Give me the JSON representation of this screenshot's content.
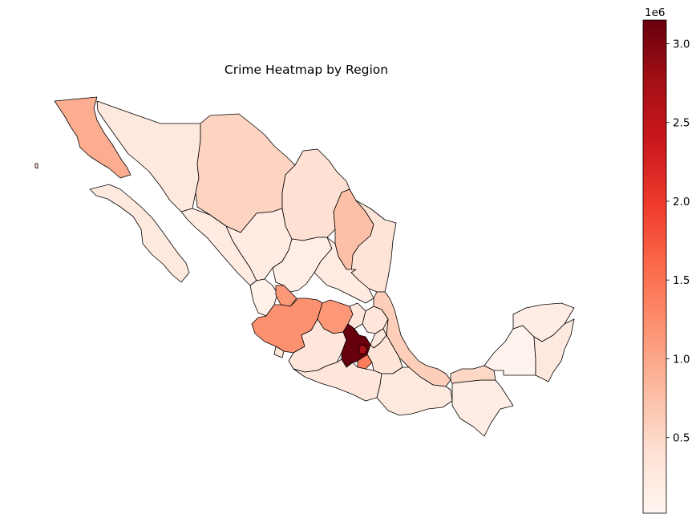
{
  "title": "Crime Heatmap by Region",
  "colorbar": {
    "multiplier_label": "1e6",
    "ticks": [
      {
        "value": 3.0,
        "label": "3.0"
      },
      {
        "value": 2.5,
        "label": "2.5"
      },
      {
        "value": 2.0,
        "label": "2.0"
      },
      {
        "value": 1.5,
        "label": "1.5"
      },
      {
        "value": 1.0,
        "label": "1.0"
      },
      {
        "value": 0.5,
        "label": "0.5"
      }
    ],
    "range": [
      0.02,
      3.15
    ],
    "colormap": [
      "#fff5f0",
      "#fee0d2",
      "#fcbba1",
      "#fc9272",
      "#fb6a4a",
      "#ef3b2c",
      "#cb181d",
      "#a50f15",
      "#67000d"
    ]
  },
  "chart_data": {
    "type": "heatmap",
    "title": "Crime Heatmap by Region",
    "unit_multiplier": "1e6",
    "value_range": [
      0.02,
      3.15
    ],
    "regions": [
      {
        "id": "baja-california",
        "value": 0.95
      },
      {
        "id": "baja-california-sur",
        "value": 0.25
      },
      {
        "id": "sonora",
        "value": 0.25
      },
      {
        "id": "chihuahua",
        "value": 0.55
      },
      {
        "id": "coahuila",
        "value": 0.4
      },
      {
        "id": "nuevo-leon",
        "value": 0.75
      },
      {
        "id": "tamaulipas",
        "value": 0.35
      },
      {
        "id": "sinaloa",
        "value": 0.2
      },
      {
        "id": "durango",
        "value": 0.2
      },
      {
        "id": "zacatecas",
        "value": 0.15
      },
      {
        "id": "san-luis-potosi",
        "value": 0.2
      },
      {
        "id": "nayarit",
        "value": 0.12
      },
      {
        "id": "aguascalientes",
        "value": 1.15
      },
      {
        "id": "jalisco",
        "value": 1.2
      },
      {
        "id": "guanajuato",
        "value": 1.15
      },
      {
        "id": "queretaro",
        "value": 0.3
      },
      {
        "id": "hidalgo",
        "value": 0.3
      },
      {
        "id": "veracruz",
        "value": 0.6
      },
      {
        "id": "colima",
        "value": 0.3
      },
      {
        "id": "michoacan",
        "value": 0.3
      },
      {
        "id": "estado-de-mexico",
        "value": 3.15
      },
      {
        "id": "ciudad-de-mexico",
        "value": 2.7
      },
      {
        "id": "morelos",
        "value": 1.4
      },
      {
        "id": "tlaxcala",
        "value": 0.3
      },
      {
        "id": "puebla",
        "value": 0.35
      },
      {
        "id": "guerrero",
        "value": 0.3
      },
      {
        "id": "oaxaca",
        "value": 0.25
      },
      {
        "id": "chiapas",
        "value": 0.18
      },
      {
        "id": "tabasco",
        "value": 0.5
      },
      {
        "id": "campeche",
        "value": 0.05
      },
      {
        "id": "yucatan",
        "value": 0.18
      },
      {
        "id": "quintana-roo",
        "value": 0.25
      }
    ]
  }
}
